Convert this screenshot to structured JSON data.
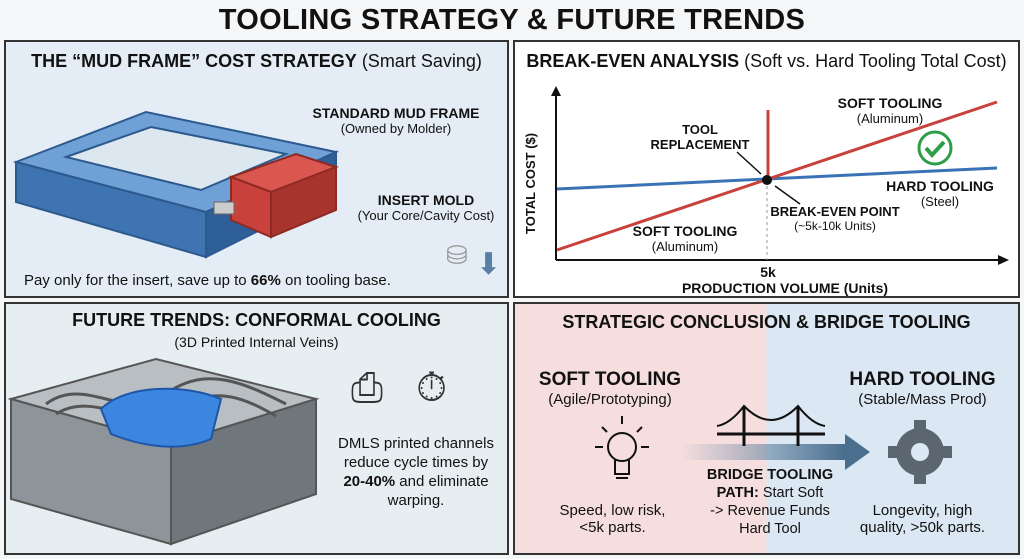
{
  "title": "TOOLING STRATEGY & FUTURE TRENDS",
  "mud": {
    "heading": "THE “MUD FRAME” COST STRATEGY",
    "heading_sub": "(Smart Saving)",
    "frame_label": "STANDARD MUD FRAME",
    "frame_sub": "(Owned by Molder)",
    "insert_label": "INSERT MOLD",
    "insert_sub": "(Your Core/Cavity Cost)",
    "note_pre": "Pay only for the insert, save up to ",
    "note_bold": "66%",
    "note_post": " on tooling base.",
    "colors": {
      "frame": "#4f86c6",
      "insert": "#c8413a"
    }
  },
  "chart_data": {
    "type": "line",
    "title": "BREAK-EVEN ANALYSIS",
    "subtitle": "(Soft vs. Hard Tooling Total Cost)",
    "xlabel": "PRODUCTION VOLUME (Units)",
    "ylabel": "TOTAL COST ($)",
    "x_ticks": [
      "5k"
    ],
    "grid": false,
    "series": [
      {
        "name": "SOFT TOOLING",
        "sub": "(Aluminum)",
        "color": "#c8413a"
      },
      {
        "name": "HARD TOOLING",
        "sub": "(Steel)",
        "color": "#3a73b5"
      }
    ],
    "annotations": {
      "tool_replacement_1": "TOOL",
      "tool_replacement_2": "REPLACEMENT",
      "break_even": "BREAK-EVEN POINT",
      "break_even_sub": "(~5k-10k Units)",
      "soft_low": "SOFT TOOLING",
      "soft_low_sub": "(Aluminum)"
    },
    "check_color": "#2e9d48"
  },
  "future": {
    "heading": "FUTURE TRENDS: CONFORMAL COOLING",
    "sub": "(3D Printed Internal Veins)",
    "text_1": "DMLS printed channels",
    "text_2": "reduce cycle times by",
    "text_bold": "20-40%",
    "text_3": " and eliminate",
    "text_4": "warping."
  },
  "conclusion": {
    "heading": "STRATEGIC CONCLUSION & BRIDGE TOOLING",
    "soft": {
      "label": "SOFT TOOLING",
      "sub": "(Agile/Prototyping)",
      "d1": "Speed, low risk,",
      "d2": "<5k parts."
    },
    "hard": {
      "label": "HARD TOOLING",
      "sub": "(Stable/Mass Prod)",
      "d1": "Longevity, high",
      "d2": "quality, >50k parts."
    },
    "bridge_bold1": "BRIDGE TOOLING",
    "bridge_bold2": "PATH:",
    "bridge_t1": " Start Soft",
    "bridge_t2": "-> Revenue Funds",
    "bridge_t3": "Hard Tool"
  }
}
